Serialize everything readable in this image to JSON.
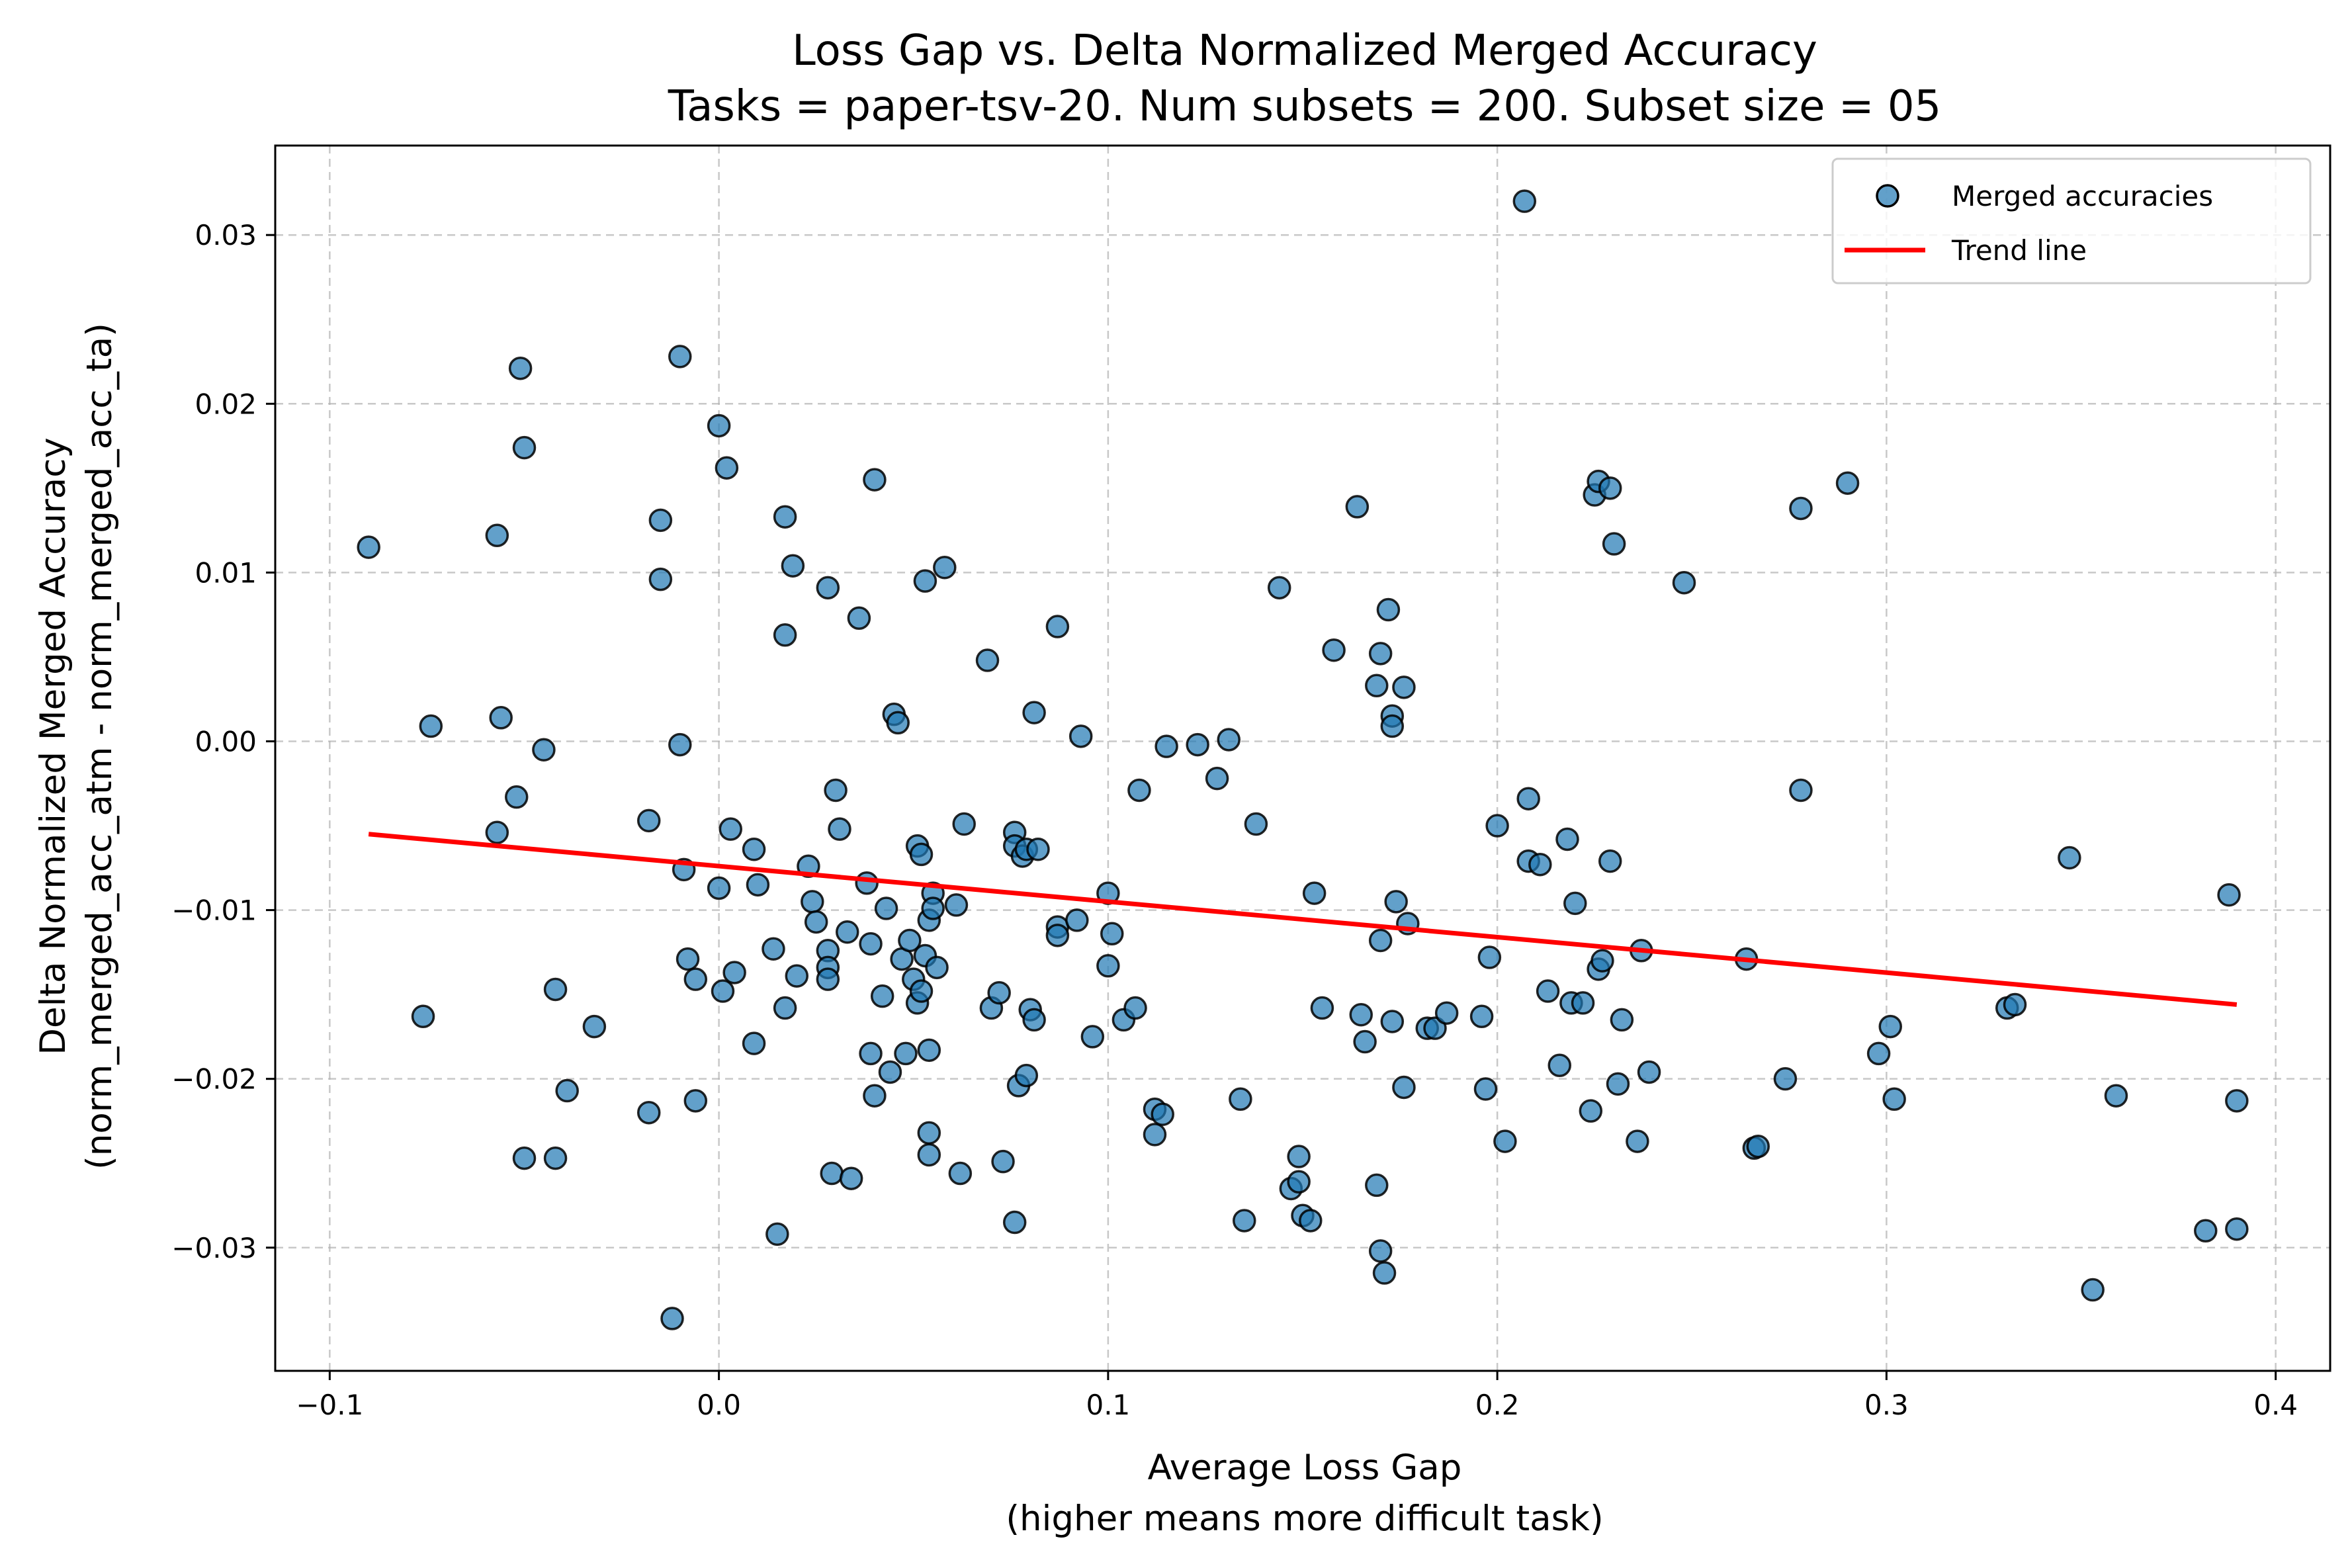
{
  "chart_data": {
    "type": "scatter",
    "title": "Loss Gap vs. Delta Normalized Merged Accuracy",
    "subtitle": "Tasks = paper-tsv-20. Num subsets = 200. Subset size = 05",
    "xlabel": "Average Loss Gap",
    "xlabel_sub": "(higher means more difficult task)",
    "ylabel": "Delta Normalized Merged Accuracy",
    "ylabel_sub": "(norm_merged_acc_atm - norm_merged_acc_ta)",
    "xlim": [
      -0.114,
      0.414
    ],
    "ylim": [
      -0.0373,
      0.0353
    ],
    "x_ticks": [
      -0.1,
      0.0,
      0.1,
      0.2,
      0.3,
      0.4
    ],
    "x_tick_labels": [
      "−0.1",
      "0.0",
      "0.1",
      "0.2",
      "0.3",
      "0.4"
    ],
    "y_ticks": [
      -0.03,
      -0.02,
      -0.01,
      0.0,
      0.01,
      0.02,
      0.03
    ],
    "y_tick_labels": [
      "−0.03",
      "−0.02",
      "−0.01",
      "0.00",
      "0.01",
      "0.02",
      "0.03"
    ],
    "grid": true,
    "legend_position": "top-right",
    "series": [
      {
        "name": "Merged accuracies",
        "kind": "scatter",
        "color": "#1f77b4",
        "edge_color": "#000000",
        "points": [
          [
            -0.09,
            0.0115
          ],
          [
            -0.076,
            -0.0163
          ],
          [
            -0.074,
            0.0009
          ],
          [
            -0.057,
            0.0122
          ],
          [
            -0.057,
            -0.0054
          ],
          [
            -0.056,
            0.0014
          ],
          [
            -0.052,
            -0.0033
          ],
          [
            -0.051,
            0.0221
          ],
          [
            -0.05,
            0.0174
          ],
          [
            -0.05,
            -0.0247
          ],
          [
            -0.045,
            -0.0005
          ],
          [
            -0.042,
            -0.0147
          ],
          [
            -0.042,
            -0.0247
          ],
          [
            -0.039,
            -0.0207
          ],
          [
            -0.032,
            -0.0169
          ],
          [
            -0.018,
            -0.0047
          ],
          [
            -0.018,
            -0.022
          ],
          [
            -0.015,
            0.0131
          ],
          [
            -0.015,
            0.0096
          ],
          [
            -0.012,
            -0.0342
          ],
          [
            -0.01,
            0.0228
          ],
          [
            -0.01,
            -0.0002
          ],
          [
            -0.009,
            -0.0076
          ],
          [
            -0.008,
            -0.0129
          ],
          [
            -0.006,
            -0.0141
          ],
          [
            -0.006,
            -0.0213
          ],
          [
            0.0,
            0.0187
          ],
          [
            0.0,
            -0.0087
          ],
          [
            0.001,
            -0.0148
          ],
          [
            0.002,
            0.0162
          ],
          [
            0.003,
            -0.0052
          ],
          [
            0.004,
            -0.0137
          ],
          [
            0.009,
            -0.0064
          ],
          [
            0.009,
            -0.0179
          ],
          [
            0.01,
            -0.0085
          ],
          [
            0.014,
            -0.0123
          ],
          [
            0.015,
            -0.0292
          ],
          [
            0.017,
            0.0133
          ],
          [
            0.017,
            0.0063
          ],
          [
            0.017,
            -0.0158
          ],
          [
            0.019,
            0.0104
          ],
          [
            0.02,
            -0.0139
          ],
          [
            0.023,
            -0.0074
          ],
          [
            0.024,
            -0.0095
          ],
          [
            0.025,
            -0.0107
          ],
          [
            0.028,
            0.0091
          ],
          [
            0.028,
            -0.0124
          ],
          [
            0.028,
            -0.0134
          ],
          [
            0.028,
            -0.0141
          ],
          [
            0.029,
            -0.0256
          ],
          [
            0.03,
            -0.0029
          ],
          [
            0.031,
            -0.0052
          ],
          [
            0.033,
            -0.0113
          ],
          [
            0.034,
            -0.0259
          ],
          [
            0.036,
            0.0073
          ],
          [
            0.038,
            -0.0084
          ],
          [
            0.039,
            -0.0185
          ],
          [
            0.039,
            -0.012
          ],
          [
            0.04,
            0.0155
          ],
          [
            0.04,
            -0.021
          ],
          [
            0.042,
            -0.0151
          ],
          [
            0.043,
            -0.0099
          ],
          [
            0.044,
            -0.0196
          ],
          [
            0.045,
            0.0016
          ],
          [
            0.046,
            0.0011
          ],
          [
            0.047,
            -0.0129
          ],
          [
            0.048,
            -0.0185
          ],
          [
            0.049,
            -0.0118
          ],
          [
            0.05,
            -0.0141
          ],
          [
            0.051,
            -0.0062
          ],
          [
            0.051,
            -0.0155
          ],
          [
            0.052,
            -0.0067
          ],
          [
            0.052,
            -0.0148
          ],
          [
            0.053,
            0.0095
          ],
          [
            0.053,
            -0.0127
          ],
          [
            0.054,
            -0.0106
          ],
          [
            0.054,
            -0.0183
          ],
          [
            0.054,
            -0.0232
          ],
          [
            0.054,
            -0.0245
          ],
          [
            0.055,
            -0.009
          ],
          [
            0.055,
            -0.0099
          ],
          [
            0.056,
            -0.0134
          ],
          [
            0.058,
            0.0103
          ],
          [
            0.061,
            -0.0097
          ],
          [
            0.062,
            -0.0256
          ],
          [
            0.063,
            -0.0049
          ],
          [
            0.069,
            0.0048
          ],
          [
            0.07,
            -0.0158
          ],
          [
            0.072,
            -0.0149
          ],
          [
            0.073,
            -0.0249
          ],
          [
            0.076,
            -0.0054
          ],
          [
            0.076,
            -0.0062
          ],
          [
            0.076,
            -0.0285
          ],
          [
            0.077,
            -0.0204
          ],
          [
            0.078,
            -0.0068
          ],
          [
            0.079,
            -0.0064
          ],
          [
            0.079,
            -0.0198
          ],
          [
            0.08,
            -0.0159
          ],
          [
            0.081,
            0.0017
          ],
          [
            0.081,
            -0.0165
          ],
          [
            0.082,
            -0.0064
          ],
          [
            0.087,
            0.0068
          ],
          [
            0.087,
            -0.011
          ],
          [
            0.087,
            -0.0115
          ],
          [
            0.092,
            -0.0106
          ],
          [
            0.093,
            0.0003
          ],
          [
            0.096,
            -0.0175
          ],
          [
            0.1,
            -0.009
          ],
          [
            0.1,
            -0.0133
          ],
          [
            0.101,
            -0.0114
          ],
          [
            0.104,
            -0.0165
          ],
          [
            0.107,
            -0.0158
          ],
          [
            0.108,
            -0.0029
          ],
          [
            0.112,
            -0.0218
          ],
          [
            0.112,
            -0.0233
          ],
          [
            0.114,
            -0.0221
          ],
          [
            0.115,
            -0.0003
          ],
          [
            0.123,
            -0.0002
          ],
          [
            0.128,
            -0.0022
          ],
          [
            0.131,
            0.0001
          ],
          [
            0.134,
            -0.0212
          ],
          [
            0.135,
            -0.0284
          ],
          [
            0.138,
            -0.0049
          ],
          [
            0.144,
            0.0091
          ],
          [
            0.147,
            -0.0265
          ],
          [
            0.149,
            -0.0246
          ],
          [
            0.149,
            -0.0261
          ],
          [
            0.15,
            -0.0281
          ],
          [
            0.152,
            -0.0284
          ],
          [
            0.153,
            -0.009
          ],
          [
            0.155,
            -0.0158
          ],
          [
            0.158,
            0.0054
          ],
          [
            0.164,
            0.0139
          ],
          [
            0.165,
            -0.0162
          ],
          [
            0.166,
            -0.0178
          ],
          [
            0.169,
            0.0033
          ],
          [
            0.169,
            -0.0263
          ],
          [
            0.17,
            0.0052
          ],
          [
            0.17,
            -0.0118
          ],
          [
            0.17,
            -0.0302
          ],
          [
            0.171,
            -0.0315
          ],
          [
            0.172,
            0.0078
          ],
          [
            0.173,
            -0.0166
          ],
          [
            0.173,
            0.0015
          ],
          [
            0.173,
            0.0009
          ],
          [
            0.174,
            -0.0095
          ],
          [
            0.176,
            0.0032
          ],
          [
            0.176,
            -0.0205
          ],
          [
            0.177,
            -0.0108
          ],
          [
            0.182,
            -0.017
          ],
          [
            0.184,
            -0.017
          ],
          [
            0.187,
            -0.0161
          ],
          [
            0.196,
            -0.0163
          ],
          [
            0.197,
            -0.0206
          ],
          [
            0.198,
            -0.0128
          ],
          [
            0.2,
            -0.005
          ],
          [
            0.202,
            -0.0237
          ],
          [
            0.207,
            0.032
          ],
          [
            0.208,
            -0.0034
          ],
          [
            0.208,
            -0.0071
          ],
          [
            0.211,
            -0.0073
          ],
          [
            0.213,
            -0.0148
          ],
          [
            0.216,
            -0.0192
          ],
          [
            0.218,
            -0.0058
          ],
          [
            0.219,
            -0.0155
          ],
          [
            0.22,
            -0.0096
          ],
          [
            0.222,
            -0.0155
          ],
          [
            0.224,
            -0.0219
          ],
          [
            0.225,
            0.0146
          ],
          [
            0.226,
            0.0154
          ],
          [
            0.226,
            -0.0135
          ],
          [
            0.227,
            -0.013
          ],
          [
            0.229,
            0.015
          ],
          [
            0.229,
            -0.0071
          ],
          [
            0.23,
            0.0117
          ],
          [
            0.231,
            -0.0203
          ],
          [
            0.232,
            -0.0165
          ],
          [
            0.236,
            -0.0237
          ],
          [
            0.237,
            -0.0124
          ],
          [
            0.239,
            -0.0196
          ],
          [
            0.248,
            0.0094
          ],
          [
            0.264,
            -0.0129
          ],
          [
            0.266,
            -0.0241
          ],
          [
            0.267,
            -0.024
          ],
          [
            0.274,
            -0.02
          ],
          [
            0.278,
            0.0138
          ],
          [
            0.278,
            -0.0029
          ],
          [
            0.29,
            0.0153
          ],
          [
            0.298,
            -0.0185
          ],
          [
            0.301,
            -0.0169
          ],
          [
            0.302,
            -0.0212
          ],
          [
            0.331,
            -0.0158
          ],
          [
            0.333,
            -0.0156
          ],
          [
            0.347,
            -0.0069
          ],
          [
            0.353,
            -0.0325
          ],
          [
            0.359,
            -0.021
          ],
          [
            0.382,
            -0.029
          ],
          [
            0.388,
            -0.0091
          ],
          [
            0.39,
            -0.0213
          ],
          [
            0.39,
            -0.0289
          ]
        ]
      },
      {
        "name": "Trend line",
        "kind": "line",
        "color": "#ff0000",
        "x": [
          -0.09,
          0.39
        ],
        "y": [
          -0.0055,
          -0.0156
        ]
      }
    ]
  }
}
